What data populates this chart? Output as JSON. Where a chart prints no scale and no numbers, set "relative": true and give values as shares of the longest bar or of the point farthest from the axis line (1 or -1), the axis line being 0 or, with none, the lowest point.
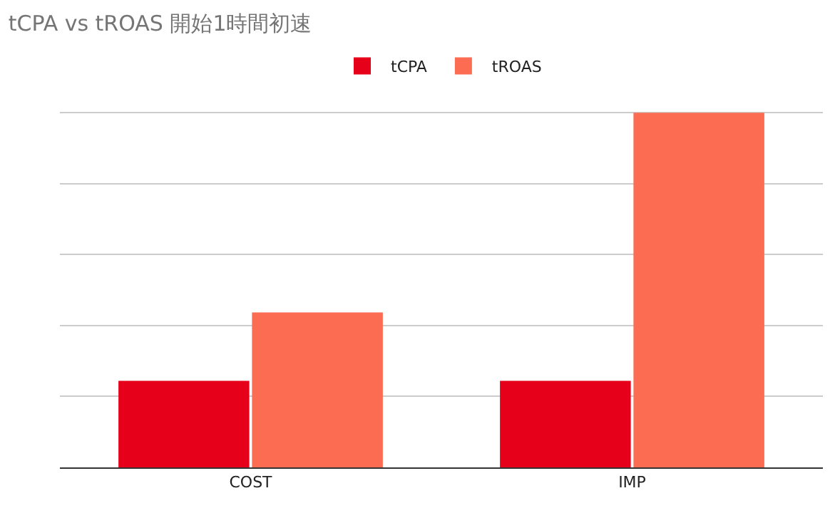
{
  "chart_data": {
    "type": "bar",
    "title": "tCPA vs tROAS 開始1時間初速",
    "categories": [
      "COST",
      "IMP"
    ],
    "relative": true,
    "grid": "y",
    "legend": "top",
    "series": [
      {
        "name": "tCPA",
        "color": "#e60019",
        "values": [
          0.244,
          0.244
        ]
      },
      {
        "name": "tROAS",
        "color": "#fb6c53",
        "values": [
          0.437,
          1
        ]
      }
    ]
  }
}
